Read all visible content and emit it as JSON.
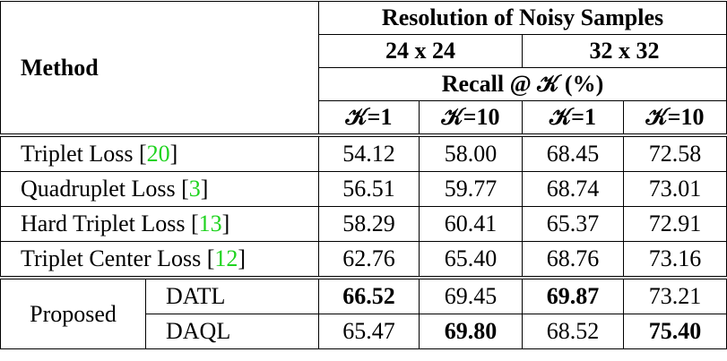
{
  "header": {
    "method": "Method",
    "resolution": "Resolution of Noisy Samples",
    "res_groups": [
      "24 x 24",
      "32 x 32"
    ],
    "metric": "Recall @ 𝒦 (%)",
    "k_labels": [
      "𝒦=1",
      "𝒦=10",
      "𝒦=1",
      "𝒦=10"
    ]
  },
  "rows": [
    {
      "method": [
        "Triplet Loss [",
        "20",
        "]"
      ],
      "values": [
        "54.12",
        "58.00",
        "68.45",
        "72.58"
      ],
      "bold": [
        false,
        false,
        false,
        false
      ]
    },
    {
      "method": [
        "Quadruplet Loss [",
        "3",
        "]"
      ],
      "values": [
        "56.51",
        "59.77",
        "68.74",
        "73.01"
      ],
      "bold": [
        false,
        false,
        false,
        false
      ]
    },
    {
      "method": [
        "Hard Triplet Loss [",
        "13",
        "]"
      ],
      "values": [
        "58.29",
        "60.41",
        "65.37",
        "72.91"
      ],
      "bold": [
        false,
        false,
        false,
        false
      ]
    },
    {
      "method": [
        "Triplet Center Loss [",
        "12",
        "]"
      ],
      "values": [
        "62.76",
        "65.40",
        "68.76",
        "73.16"
      ],
      "bold": [
        false,
        false,
        false,
        false
      ]
    }
  ],
  "proposed": {
    "label": "Proposed",
    "rows": [
      {
        "name": "DATL",
        "values": [
          "66.52",
          "69.45",
          "69.87",
          "73.21"
        ],
        "bold": [
          true,
          false,
          true,
          false
        ]
      },
      {
        "name": "DAQL",
        "values": [
          "65.47",
          "69.80",
          "68.52",
          "75.40"
        ],
        "bold": [
          false,
          true,
          false,
          true
        ]
      }
    ]
  },
  "citation_color": "#1fd31f"
}
